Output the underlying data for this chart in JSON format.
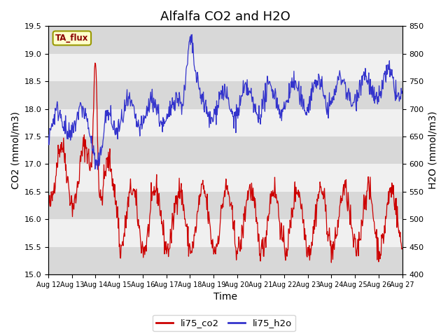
{
  "title": "Alfalfa CO2 and H2O",
  "xlabel": "Time",
  "ylabel_left": "CO2 (mmol/m3)",
  "ylabel_right": "H2O (mmol/m3)",
  "ylim_left": [
    15.0,
    19.5
  ],
  "ylim_right": [
    400,
    850
  ],
  "yticks_left": [
    15.0,
    15.5,
    16.0,
    16.5,
    17.0,
    17.5,
    18.0,
    18.5,
    19.0,
    19.5
  ],
  "yticks_right": [
    400,
    450,
    500,
    550,
    600,
    650,
    700,
    750,
    800,
    850
  ],
  "xtick_labels": [
    "Aug 12",
    "Aug 13",
    "Aug 14",
    "Aug 15",
    "Aug 16",
    "Aug 17",
    "Aug 18",
    "Aug 19",
    "Aug 20",
    "Aug 21",
    "Aug 22",
    "Aug 23",
    "Aug 24",
    "Aug 25",
    "Aug 26",
    "Aug 27"
  ],
  "color_co2": "#cc0000",
  "color_h2o": "#3333cc",
  "legend_labels": [
    "li75_co2",
    "li75_h2o"
  ],
  "tag_label": "TA_flux",
  "tag_facecolor": "#ffffcc",
  "tag_edgecolor": "#999900",
  "stripe_color_dark": "#d8d8d8",
  "stripe_color_light": "#f0f0f0",
  "title_fontsize": 13,
  "axis_label_fontsize": 10,
  "tick_fontsize": 8
}
